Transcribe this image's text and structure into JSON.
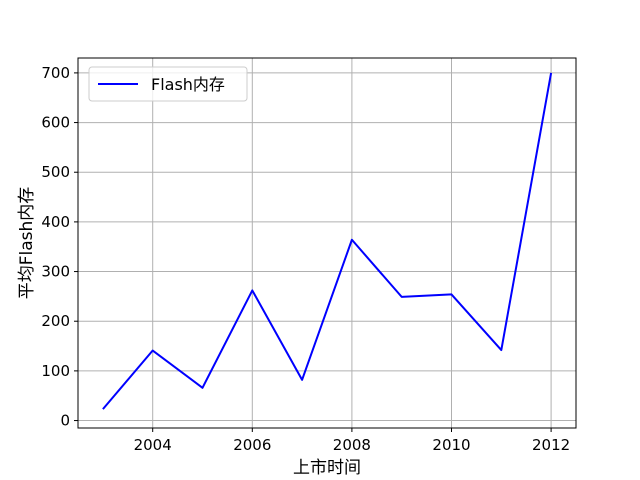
{
  "chart_data": {
    "type": "line",
    "title": "",
    "xlabel": "上市时间",
    "ylabel": "平均Flash内存",
    "xlim": [
      2002.5,
      2012.5
    ],
    "ylim": [
      -15,
      730
    ],
    "xticks": [
      2004,
      2006,
      2008,
      2010,
      2012
    ],
    "yticks": [
      0,
      100,
      200,
      300,
      400,
      500,
      600,
      700
    ],
    "grid": true,
    "legend_position": "top-left",
    "series": [
      {
        "name": "Flash内存",
        "color": "#0000ff",
        "x": [
          2003,
          2004,
          2005,
          2006,
          2007,
          2008,
          2009,
          2010,
          2011,
          2012
        ],
        "y": [
          23,
          141,
          66,
          262,
          82,
          364,
          249,
          254,
          142,
          700
        ]
      }
    ]
  }
}
